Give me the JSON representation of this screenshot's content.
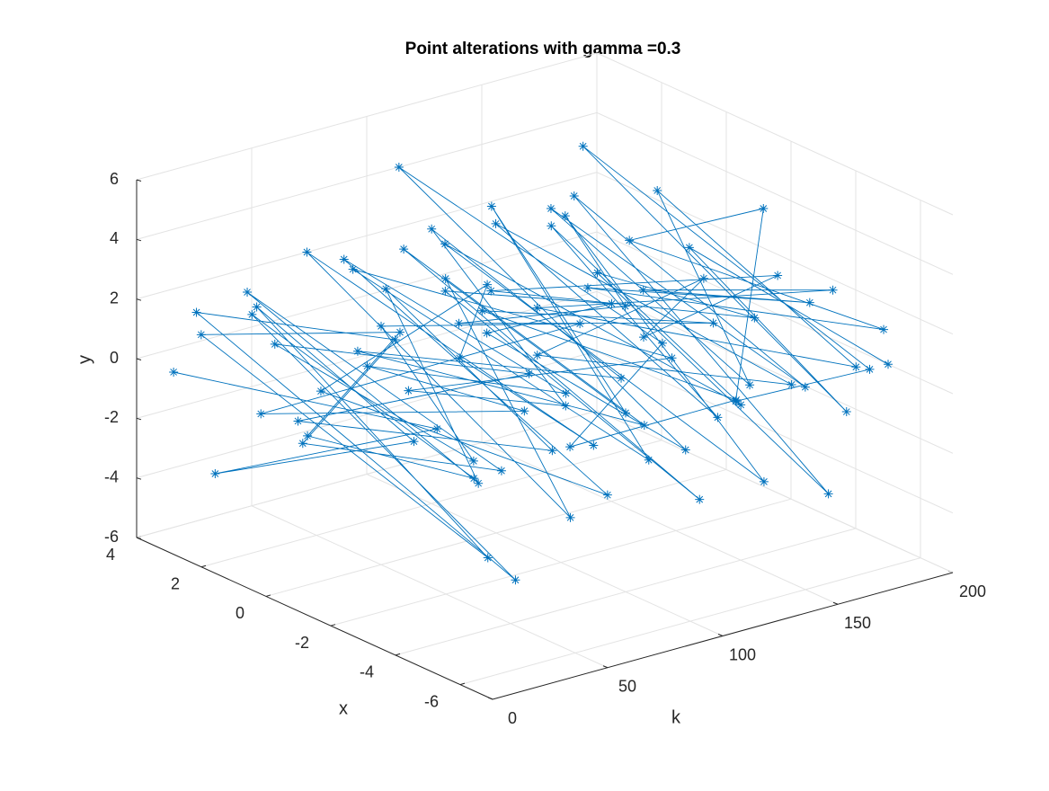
{
  "chart_data": {
    "type": "line3d",
    "title": "Point alterations with gamma =0.3",
    "klabel": "k",
    "xlabel": "x",
    "ylabel": "y",
    "color": "#0072bd",
    "grid": true,
    "klim": [
      0,
      200
    ],
    "xlim": [
      -7,
      4
    ],
    "ylim": [
      -6,
      6
    ],
    "kticks": [
      0,
      50,
      100,
      150,
      200
    ],
    "xticks": [
      -6,
      -4,
      -2,
      0,
      2,
      4
    ],
    "yticks": [
      -6,
      -4,
      -2,
      0,
      2,
      4,
      6
    ],
    "k": [
      2,
      4,
      6,
      8,
      10,
      12,
      14,
      16,
      18,
      20,
      22,
      24,
      26,
      28,
      30,
      32,
      34,
      36,
      38,
      40,
      42,
      44,
      46,
      48,
      50,
      52,
      54,
      56,
      58,
      60,
      62,
      64,
      66,
      68,
      70,
      72,
      74,
      76,
      78,
      80,
      82,
      84,
      86,
      88,
      90,
      92,
      94,
      96,
      98,
      100,
      102,
      104,
      106,
      108,
      110,
      112,
      114,
      116,
      118,
      120,
      122,
      124,
      126,
      128,
      130,
      132,
      134,
      136,
      138,
      140,
      142,
      144,
      146,
      148,
      150,
      152,
      154,
      156,
      158,
      160,
      162,
      164,
      166,
      168,
      170,
      172,
      174,
      176,
      178,
      180,
      182,
      184,
      186,
      188,
      190,
      192,
      194,
      196,
      198,
      200
    ],
    "x": [
      3,
      -5,
      2,
      -4,
      1,
      -6,
      3,
      -3,
      0,
      -5,
      2,
      -6,
      4,
      -2,
      1,
      -5,
      3,
      -4,
      -1,
      -6,
      2,
      -5,
      3,
      -3,
      0,
      -6,
      4,
      -4,
      1,
      -5,
      2,
      -6,
      3,
      -2,
      -1,
      -5,
      4,
      -4,
      0,
      -6,
      3,
      -5,
      1,
      -3,
      2,
      -6,
      4,
      -5,
      0,
      -4,
      3,
      -6,
      2,
      -3,
      1,
      -5,
      4,
      -4,
      -1,
      -6,
      2,
      -5,
      3,
      -2,
      0,
      -6,
      4,
      -5,
      1,
      -4,
      3,
      -6,
      2,
      -3,
      -1,
      -5,
      4,
      -4,
      1,
      -6,
      2,
      -5,
      3,
      -3,
      0,
      -6,
      4,
      -5,
      1,
      -4,
      3,
      -6,
      2,
      -2,
      -1,
      -5,
      4,
      -4,
      1,
      -5
    ],
    "y": [
      0,
      2,
      -3,
      1,
      3,
      -2,
      1,
      4,
      -1,
      0,
      2,
      -3,
      1,
      3,
      -2,
      0,
      2,
      -1,
      4,
      1,
      -2,
      3,
      0,
      -1,
      2,
      5,
      -3,
      1,
      0,
      2,
      3,
      -1,
      -2,
      4,
      1,
      0,
      2,
      -3,
      3,
      1,
      -1,
      2,
      4,
      0,
      -2,
      3,
      1,
      -1,
      5,
      0,
      2,
      -2,
      1,
      3,
      0,
      -1,
      4,
      2,
      -3,
      1,
      0,
      3,
      -1,
      2,
      4,
      -2,
      1,
      0,
      3,
      -1,
      2,
      1,
      -2,
      3,
      0,
      4,
      -1,
      2,
      1,
      -3,
      3,
      0,
      2,
      -1,
      4,
      1,
      -2,
      3,
      0,
      2,
      -1,
      2,
      1,
      4,
      -3,
      0,
      3,
      -2,
      1,
      0
    ]
  }
}
